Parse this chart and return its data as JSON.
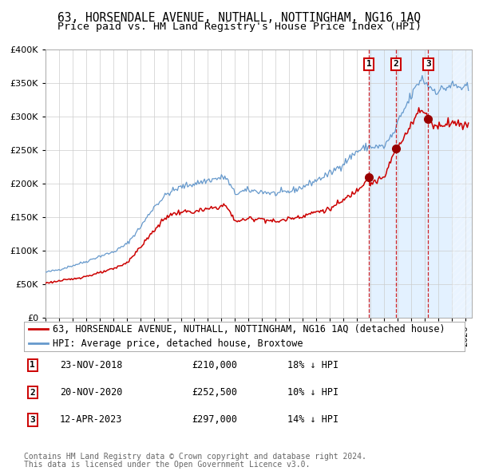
{
  "title": "63, HORSENDALE AVENUE, NUTHALL, NOTTINGHAM, NG16 1AQ",
  "subtitle": "Price paid vs. HM Land Registry's House Price Index (HPI)",
  "legend_line1": "63, HORSENDALE AVENUE, NUTHALL, NOTTINGHAM, NG16 1AQ (detached house)",
  "legend_line2": "HPI: Average price, detached house, Broxtowe",
  "footer1": "Contains HM Land Registry data © Crown copyright and database right 2024.",
  "footer2": "This data is licensed under the Open Government Licence v3.0.",
  "transactions": [
    {
      "num": "1",
      "date": "23-NOV-2018",
      "price": "£210,000",
      "hpi_diff": "18% ↓ HPI"
    },
    {
      "num": "2",
      "date": "20-NOV-2020",
      "price": "£252,500",
      "hpi_diff": "10% ↓ HPI"
    },
    {
      "num": "3",
      "date": "12-APR-2023",
      "price": "£297,000",
      "hpi_diff": "14% ↓ HPI"
    }
  ],
  "transaction_dates_decimal": [
    2018.896,
    2020.893,
    2023.278
  ],
  "transaction_prices": [
    210000,
    252500,
    297000
  ],
  "ylim": [
    0,
    400000
  ],
  "xlim_start": 1995.0,
  "xlim_end": 2026.5,
  "hpi_color": "#6699cc",
  "price_color": "#cc0000",
  "marker_color": "#990000",
  "vline_color": "#cc0000",
  "shade_color": "#ddeeff",
  "grid_color": "#cccccc",
  "background_color": "#ffffff",
  "title_fontsize": 10.5,
  "subtitle_fontsize": 9.5,
  "tick_fontsize": 8,
  "legend_fontsize": 8.5,
  "footer_fontsize": 7
}
